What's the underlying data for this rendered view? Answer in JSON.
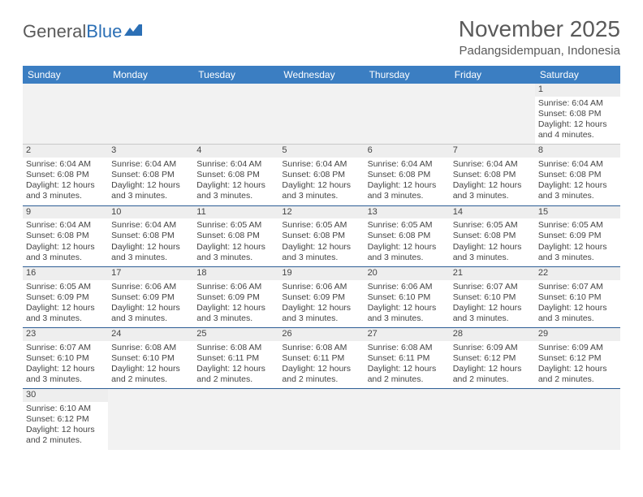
{
  "logo": {
    "part1": "General",
    "part2": "Blue"
  },
  "title": "November 2025",
  "subtitle": "Padangsidempuan, Indonesia",
  "header_bg": "#3b7ec2",
  "header_fg": "#ffffff",
  "divider_color": "#2e5e95",
  "daynum_bg": "#eeeeee",
  "text_color": "#444444",
  "weekdays": [
    "Sunday",
    "Monday",
    "Tuesday",
    "Wednesday",
    "Thursday",
    "Friday",
    "Saturday"
  ],
  "weeks": [
    [
      {
        "empty": true
      },
      {
        "empty": true
      },
      {
        "empty": true
      },
      {
        "empty": true
      },
      {
        "empty": true
      },
      {
        "empty": true
      },
      {
        "n": "1",
        "sr": "Sunrise: 6:04 AM",
        "ss": "Sunset: 6:08 PM",
        "d1": "Daylight: 12 hours",
        "d2": "and 4 minutes."
      }
    ],
    [
      {
        "n": "2",
        "sr": "Sunrise: 6:04 AM",
        "ss": "Sunset: 6:08 PM",
        "d1": "Daylight: 12 hours",
        "d2": "and 3 minutes."
      },
      {
        "n": "3",
        "sr": "Sunrise: 6:04 AM",
        "ss": "Sunset: 6:08 PM",
        "d1": "Daylight: 12 hours",
        "d2": "and 3 minutes."
      },
      {
        "n": "4",
        "sr": "Sunrise: 6:04 AM",
        "ss": "Sunset: 6:08 PM",
        "d1": "Daylight: 12 hours",
        "d2": "and 3 minutes."
      },
      {
        "n": "5",
        "sr": "Sunrise: 6:04 AM",
        "ss": "Sunset: 6:08 PM",
        "d1": "Daylight: 12 hours",
        "d2": "and 3 minutes."
      },
      {
        "n": "6",
        "sr": "Sunrise: 6:04 AM",
        "ss": "Sunset: 6:08 PM",
        "d1": "Daylight: 12 hours",
        "d2": "and 3 minutes."
      },
      {
        "n": "7",
        "sr": "Sunrise: 6:04 AM",
        "ss": "Sunset: 6:08 PM",
        "d1": "Daylight: 12 hours",
        "d2": "and 3 minutes."
      },
      {
        "n": "8",
        "sr": "Sunrise: 6:04 AM",
        "ss": "Sunset: 6:08 PM",
        "d1": "Daylight: 12 hours",
        "d2": "and 3 minutes."
      }
    ],
    [
      {
        "n": "9",
        "sr": "Sunrise: 6:04 AM",
        "ss": "Sunset: 6:08 PM",
        "d1": "Daylight: 12 hours",
        "d2": "and 3 minutes."
      },
      {
        "n": "10",
        "sr": "Sunrise: 6:04 AM",
        "ss": "Sunset: 6:08 PM",
        "d1": "Daylight: 12 hours",
        "d2": "and 3 minutes."
      },
      {
        "n": "11",
        "sr": "Sunrise: 6:05 AM",
        "ss": "Sunset: 6:08 PM",
        "d1": "Daylight: 12 hours",
        "d2": "and 3 minutes."
      },
      {
        "n": "12",
        "sr": "Sunrise: 6:05 AM",
        "ss": "Sunset: 6:08 PM",
        "d1": "Daylight: 12 hours",
        "d2": "and 3 minutes."
      },
      {
        "n": "13",
        "sr": "Sunrise: 6:05 AM",
        "ss": "Sunset: 6:08 PM",
        "d1": "Daylight: 12 hours",
        "d2": "and 3 minutes."
      },
      {
        "n": "14",
        "sr": "Sunrise: 6:05 AM",
        "ss": "Sunset: 6:08 PM",
        "d1": "Daylight: 12 hours",
        "d2": "and 3 minutes."
      },
      {
        "n": "15",
        "sr": "Sunrise: 6:05 AM",
        "ss": "Sunset: 6:09 PM",
        "d1": "Daylight: 12 hours",
        "d2": "and 3 minutes."
      }
    ],
    [
      {
        "n": "16",
        "sr": "Sunrise: 6:05 AM",
        "ss": "Sunset: 6:09 PM",
        "d1": "Daylight: 12 hours",
        "d2": "and 3 minutes."
      },
      {
        "n": "17",
        "sr": "Sunrise: 6:06 AM",
        "ss": "Sunset: 6:09 PM",
        "d1": "Daylight: 12 hours",
        "d2": "and 3 minutes."
      },
      {
        "n": "18",
        "sr": "Sunrise: 6:06 AM",
        "ss": "Sunset: 6:09 PM",
        "d1": "Daylight: 12 hours",
        "d2": "and 3 minutes."
      },
      {
        "n": "19",
        "sr": "Sunrise: 6:06 AM",
        "ss": "Sunset: 6:09 PM",
        "d1": "Daylight: 12 hours",
        "d2": "and 3 minutes."
      },
      {
        "n": "20",
        "sr": "Sunrise: 6:06 AM",
        "ss": "Sunset: 6:10 PM",
        "d1": "Daylight: 12 hours",
        "d2": "and 3 minutes."
      },
      {
        "n": "21",
        "sr": "Sunrise: 6:07 AM",
        "ss": "Sunset: 6:10 PM",
        "d1": "Daylight: 12 hours",
        "d2": "and 3 minutes."
      },
      {
        "n": "22",
        "sr": "Sunrise: 6:07 AM",
        "ss": "Sunset: 6:10 PM",
        "d1": "Daylight: 12 hours",
        "d2": "and 3 minutes."
      }
    ],
    [
      {
        "n": "23",
        "sr": "Sunrise: 6:07 AM",
        "ss": "Sunset: 6:10 PM",
        "d1": "Daylight: 12 hours",
        "d2": "and 3 minutes."
      },
      {
        "n": "24",
        "sr": "Sunrise: 6:08 AM",
        "ss": "Sunset: 6:10 PM",
        "d1": "Daylight: 12 hours",
        "d2": "and 2 minutes."
      },
      {
        "n": "25",
        "sr": "Sunrise: 6:08 AM",
        "ss": "Sunset: 6:11 PM",
        "d1": "Daylight: 12 hours",
        "d2": "and 2 minutes."
      },
      {
        "n": "26",
        "sr": "Sunrise: 6:08 AM",
        "ss": "Sunset: 6:11 PM",
        "d1": "Daylight: 12 hours",
        "d2": "and 2 minutes."
      },
      {
        "n": "27",
        "sr": "Sunrise: 6:08 AM",
        "ss": "Sunset: 6:11 PM",
        "d1": "Daylight: 12 hours",
        "d2": "and 2 minutes."
      },
      {
        "n": "28",
        "sr": "Sunrise: 6:09 AM",
        "ss": "Sunset: 6:12 PM",
        "d1": "Daylight: 12 hours",
        "d2": "and 2 minutes."
      },
      {
        "n": "29",
        "sr": "Sunrise: 6:09 AM",
        "ss": "Sunset: 6:12 PM",
        "d1": "Daylight: 12 hours",
        "d2": "and 2 minutes."
      }
    ],
    [
      {
        "n": "30",
        "sr": "Sunrise: 6:10 AM",
        "ss": "Sunset: 6:12 PM",
        "d1": "Daylight: 12 hours",
        "d2": "and 2 minutes."
      },
      {
        "empty": true
      },
      {
        "empty": true
      },
      {
        "empty": true
      },
      {
        "empty": true
      },
      {
        "empty": true
      },
      {
        "empty": true
      }
    ]
  ]
}
